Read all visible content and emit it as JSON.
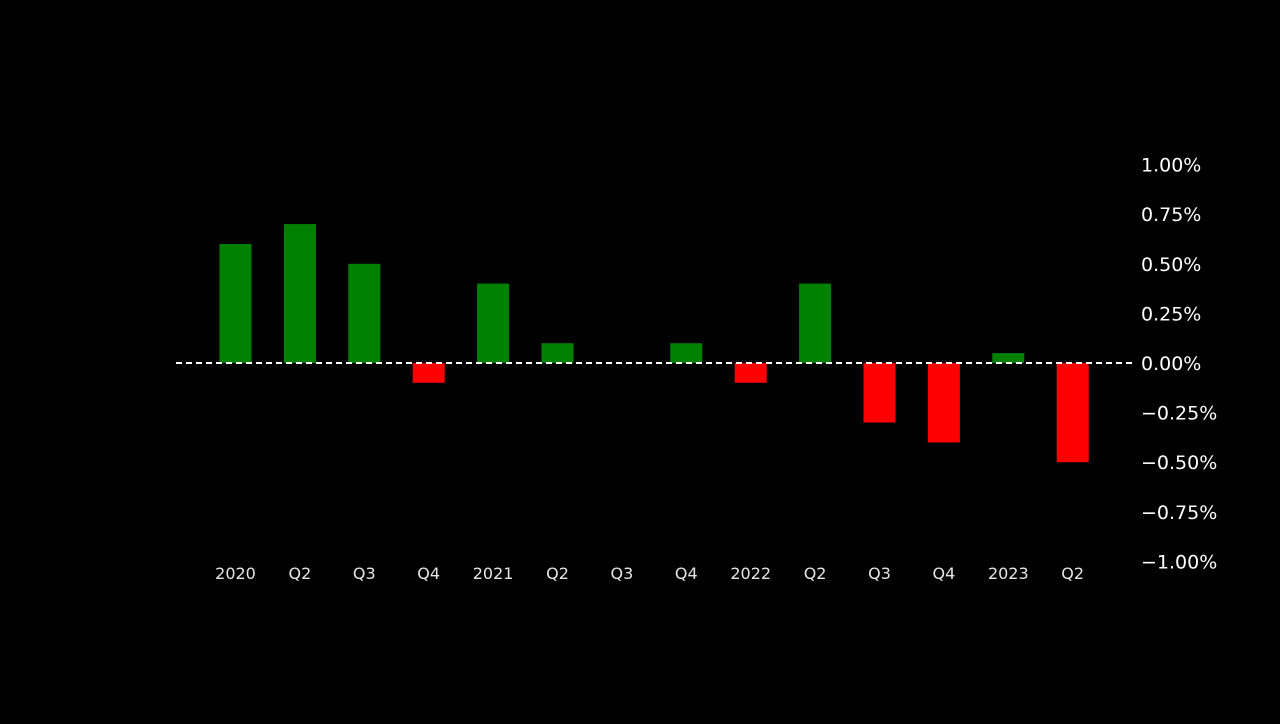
{
  "chart_data": {
    "type": "bar",
    "title": "",
    "xlabel": "",
    "ylabel": "",
    "categories": [
      "2020",
      "Q2",
      "Q3",
      "Q4",
      "2021",
      "Q2",
      "Q3",
      "Q4",
      "2022",
      "Q2",
      "Q3",
      "Q4",
      "2023",
      "Q2"
    ],
    "values": [
      0.6,
      0.7,
      0.5,
      -0.1,
      0.4,
      0.1,
      0.0,
      0.1,
      -0.1,
      0.4,
      -0.3,
      -0.4,
      0.05,
      -0.5
    ],
    "value_unit": "%",
    "ylim": [
      -1.0,
      1.0
    ],
    "y_ticks": [
      1.0,
      0.75,
      0.5,
      0.25,
      0.0,
      -0.25,
      -0.5,
      -0.75,
      -1.0
    ],
    "y_tick_labels": [
      "1.00%",
      "0.75%",
      "0.50%",
      "0.25%",
      "0.00%",
      "−0.25%",
      "−0.50%",
      "−0.75%",
      "−1.00%"
    ],
    "y_axis_side": "right",
    "zero_line": "dashed",
    "grid": false,
    "legend": "none",
    "colors": {
      "background": "#000000",
      "positive": "#008000",
      "negative": "#ff0000",
      "text": "#ffffff",
      "zero_line": "#ffffff"
    }
  }
}
